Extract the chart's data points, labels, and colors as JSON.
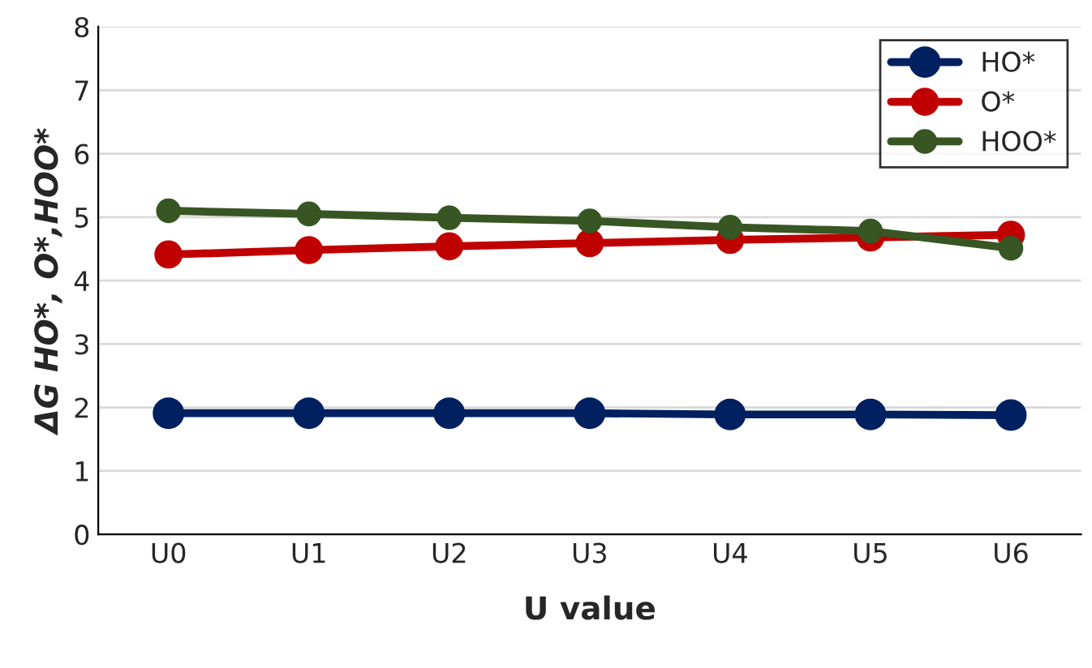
{
  "chart_data": {
    "type": "line",
    "xlabel": "U value",
    "ylabel": "ΔG HO*, O*,HOO*",
    "categories": [
      "U0",
      "U1",
      "U2",
      "U3",
      "U4",
      "U5",
      "U6"
    ],
    "series": [
      {
        "name": "HO*",
        "color": "#002060",
        "values": [
          1.91,
          1.91,
          1.91,
          1.91,
          1.89,
          1.89,
          1.88
        ]
      },
      {
        "name": "O*",
        "color": "#c00000",
        "values": [
          4.41,
          4.48,
          4.54,
          4.59,
          4.64,
          4.68,
          4.72
        ]
      },
      {
        "name": "HOO*",
        "color": "#375623",
        "values": [
          5.1,
          5.05,
          4.99,
          4.94,
          4.84,
          4.78,
          4.51
        ]
      }
    ],
    "ylim": [
      0,
      8
    ],
    "yticks": [
      0,
      1,
      2,
      3,
      4,
      5,
      6,
      7,
      8
    ],
    "grid": "y",
    "legend": "top right",
    "marker": "circle",
    "line_style": "solid"
  }
}
